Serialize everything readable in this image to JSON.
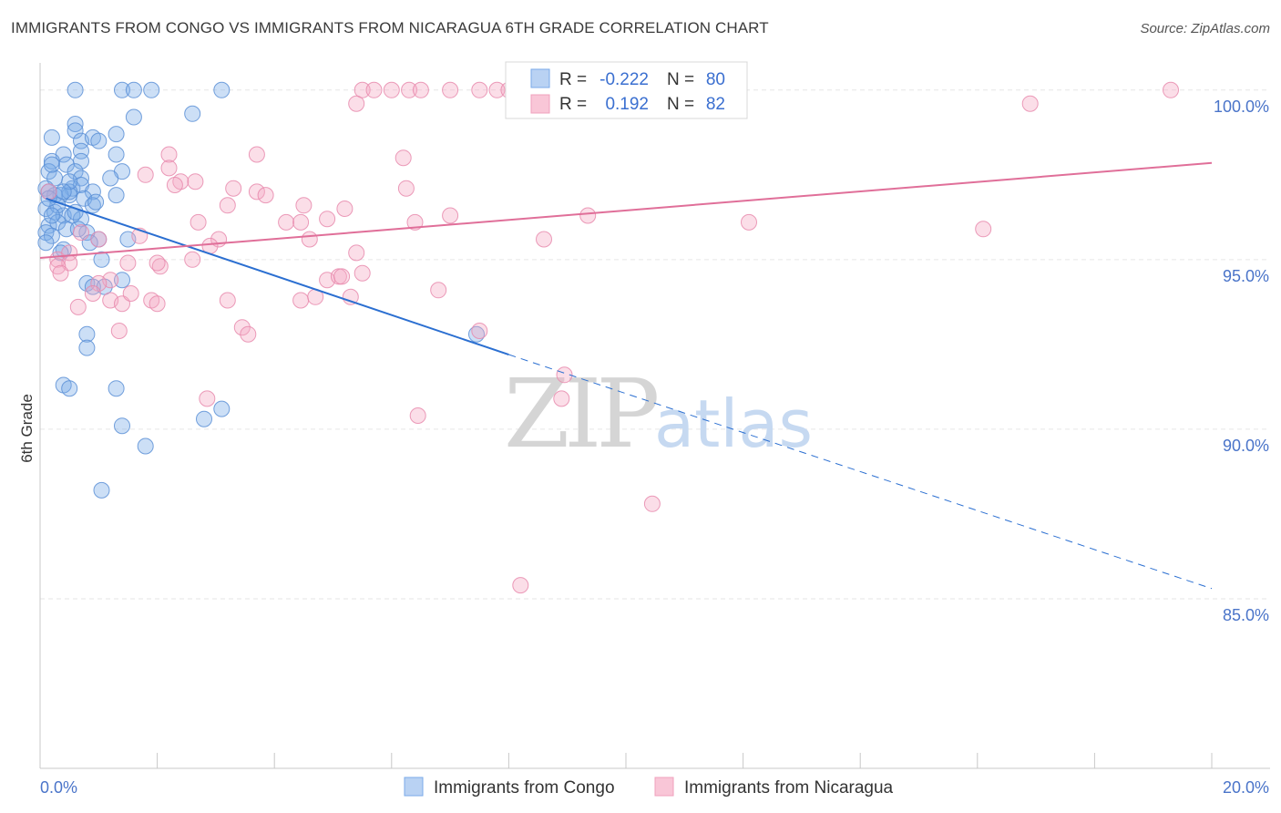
{
  "title": "IMMIGRANTS FROM CONGO VS IMMIGRANTS FROM NICARAGUA 6TH GRADE CORRELATION CHART",
  "source": "Source: ZipAtlas.com",
  "watermark": {
    "zip": "ZIP",
    "atlas": "atlas"
  },
  "chart_data": {
    "type": "scatter",
    "title": "IMMIGRANTS FROM CONGO VS IMMIGRANTS FROM NICARAGUA 6TH GRADE CORRELATION CHART",
    "xlabel": "",
    "ylabel": "6th Grade",
    "xlim": [
      0,
      20
    ],
    "ylim": [
      80,
      100.8
    ],
    "x_tick_labels": [
      {
        "value": 0,
        "label": "0.0%"
      },
      {
        "value": 20,
        "label": "20.0%"
      }
    ],
    "x_minor_ticks": [
      2,
      4,
      6,
      8,
      10,
      12,
      14,
      16,
      18,
      20
    ],
    "y_ticks": [
      {
        "value": 100,
        "label": "100.0%"
      },
      {
        "value": 95,
        "label": "95.0%"
      },
      {
        "value": 90,
        "label": "90.0%"
      },
      {
        "value": 85,
        "label": "85.0%"
      }
    ],
    "grid": true,
    "legend": {
      "position": "top-center",
      "entries": [
        {
          "r_label": "R =",
          "r_value": "-0.222",
          "n_label": "N =",
          "n_value": "80"
        },
        {
          "r_label": "R =",
          "r_value": "0.192",
          "n_label": "N =",
          "n_value": "82"
        }
      ]
    },
    "series": [
      {
        "name": "Immigrants from Congo",
        "color": "#7aaae8",
        "stroke": "#5b8fd6",
        "line_color": "#2b6fd1",
        "trend": {
          "x0": 0.1,
          "y0": 96.8,
          "x1": 8.0,
          "y1": 92.2,
          "dash_to_x": 20.0,
          "dash_to_y": 85.3
        },
        "points": [
          [
            0.6,
            100
          ],
          [
            1.4,
            100
          ],
          [
            1.6,
            100
          ],
          [
            1.9,
            100
          ],
          [
            3.1,
            100
          ],
          [
            2.6,
            99.3
          ],
          [
            1.6,
            99.2
          ],
          [
            0.6,
            99.0
          ],
          [
            0.6,
            98.8
          ],
          [
            0.2,
            98.6
          ],
          [
            1.3,
            98.7
          ],
          [
            0.7,
            98.5
          ],
          [
            0.9,
            98.6
          ],
          [
            1.0,
            98.5
          ],
          [
            0.4,
            98.1
          ],
          [
            0.7,
            98.2
          ],
          [
            1.3,
            98.1
          ],
          [
            0.2,
            97.9
          ],
          [
            0.7,
            97.9
          ],
          [
            0.45,
            97.8
          ],
          [
            0.15,
            97.6
          ],
          [
            0.6,
            97.6
          ],
          [
            1.4,
            97.6
          ],
          [
            0.25,
            97.4
          ],
          [
            0.7,
            97.4
          ],
          [
            1.2,
            97.4
          ],
          [
            0.1,
            97.1
          ],
          [
            0.55,
            97.1
          ],
          [
            0.7,
            97.2
          ],
          [
            0.9,
            97.0
          ],
          [
            0.25,
            96.9
          ],
          [
            0.5,
            96.9
          ],
          [
            0.35,
            96.9
          ],
          [
            0.15,
            97.0
          ],
          [
            0.5,
            97.0
          ],
          [
            0.75,
            96.8
          ],
          [
            0.1,
            96.5
          ],
          [
            0.25,
            96.4
          ],
          [
            0.4,
            96.3
          ],
          [
            0.55,
            96.3
          ],
          [
            0.9,
            96.6
          ],
          [
            0.95,
            96.7
          ],
          [
            1.3,
            96.9
          ],
          [
            0.7,
            96.2
          ],
          [
            0.15,
            96.0
          ],
          [
            0.3,
            96.1
          ],
          [
            0.45,
            95.9
          ],
          [
            0.1,
            95.8
          ],
          [
            0.2,
            95.7
          ],
          [
            0.8,
            95.8
          ],
          [
            1.0,
            95.6
          ],
          [
            1.5,
            95.6
          ],
          [
            0.1,
            95.5
          ],
          [
            0.4,
            95.3
          ],
          [
            1.05,
            95.0
          ],
          [
            0.8,
            94.3
          ],
          [
            0.9,
            94.2
          ],
          [
            1.4,
            94.4
          ],
          [
            0.8,
            92.8
          ],
          [
            0.8,
            92.4
          ],
          [
            7.45,
            92.8
          ],
          [
            0.4,
            91.3
          ],
          [
            0.5,
            91.2
          ],
          [
            1.3,
            91.2
          ],
          [
            3.1,
            90.6
          ],
          [
            2.8,
            90.3
          ],
          [
            1.4,
            90.1
          ],
          [
            1.8,
            89.5
          ],
          [
            1.05,
            88.2
          ],
          [
            0.2,
            97.8
          ],
          [
            0.3,
            96.6
          ],
          [
            0.6,
            96.4
          ],
          [
            0.85,
            95.5
          ],
          [
            0.35,
            95.2
          ],
          [
            1.1,
            94.2
          ],
          [
            0.5,
            97.3
          ],
          [
            0.2,
            96.3
          ],
          [
            0.65,
            95.9
          ],
          [
            0.4,
            97.0
          ],
          [
            0.15,
            96.8
          ]
        ]
      },
      {
        "name": "Immigrants from Nicaragua",
        "color": "#f4a8c3",
        "stroke": "#e88aad",
        "line_color": "#e06f99",
        "trend": {
          "x0": 0.0,
          "y0": 95.05,
          "x1": 20.0,
          "y1": 97.85
        },
        "points": [
          [
            5.5,
            100
          ],
          [
            5.7,
            100
          ],
          [
            6.0,
            100
          ],
          [
            6.3,
            100
          ],
          [
            6.5,
            100
          ],
          [
            7.0,
            100
          ],
          [
            7.5,
            100
          ],
          [
            7.8,
            100
          ],
          [
            8.0,
            100
          ],
          [
            19.3,
            100
          ],
          [
            5.4,
            99.6
          ],
          [
            16.9,
            99.6
          ],
          [
            2.2,
            98.1
          ],
          [
            3.7,
            98.1
          ],
          [
            6.2,
            98.0
          ],
          [
            2.2,
            97.7
          ],
          [
            1.8,
            97.5
          ],
          [
            2.4,
            97.3
          ],
          [
            2.65,
            97.3
          ],
          [
            2.3,
            97.2
          ],
          [
            3.3,
            97.1
          ],
          [
            3.7,
            97.0
          ],
          [
            3.85,
            96.9
          ],
          [
            6.25,
            97.1
          ],
          [
            4.5,
            96.6
          ],
          [
            3.2,
            96.6
          ],
          [
            5.2,
            96.5
          ],
          [
            4.2,
            96.1
          ],
          [
            4.45,
            96.1
          ],
          [
            4.9,
            96.2
          ],
          [
            2.7,
            96.1
          ],
          [
            6.4,
            96.1
          ],
          [
            7.0,
            96.3
          ],
          [
            9.35,
            96.3
          ],
          [
            12.1,
            96.1
          ],
          [
            16.1,
            95.9
          ],
          [
            3.05,
            95.6
          ],
          [
            2.9,
            95.4
          ],
          [
            1.7,
            95.7
          ],
          [
            4.6,
            95.6
          ],
          [
            8.6,
            95.6
          ],
          [
            0.3,
            95.0
          ],
          [
            0.5,
            95.2
          ],
          [
            0.7,
            95.8
          ],
          [
            0.5,
            94.9
          ],
          [
            0.3,
            94.8
          ],
          [
            1.5,
            94.9
          ],
          [
            2.05,
            94.8
          ],
          [
            2.6,
            95.0
          ],
          [
            5.4,
            95.2
          ],
          [
            5.5,
            94.6
          ],
          [
            4.9,
            94.4
          ],
          [
            5.1,
            94.5
          ],
          [
            5.15,
            94.5
          ],
          [
            6.8,
            94.1
          ],
          [
            1.2,
            94.4
          ],
          [
            1.0,
            94.3
          ],
          [
            0.9,
            94.0
          ],
          [
            1.2,
            93.8
          ],
          [
            1.4,
            93.7
          ],
          [
            1.55,
            94.0
          ],
          [
            1.9,
            93.8
          ],
          [
            2.0,
            93.7
          ],
          [
            0.65,
            93.6
          ],
          [
            3.2,
            93.8
          ],
          [
            4.45,
            93.8
          ],
          [
            4.7,
            93.9
          ],
          [
            5.3,
            93.9
          ],
          [
            3.45,
            93.0
          ],
          [
            3.55,
            92.8
          ],
          [
            1.35,
            92.9
          ],
          [
            7.5,
            92.9
          ],
          [
            8.95,
            91.6
          ],
          [
            2.85,
            90.9
          ],
          [
            8.9,
            90.9
          ],
          [
            6.45,
            90.4
          ],
          [
            10.45,
            87.8
          ],
          [
            8.2,
            85.4
          ],
          [
            0.15,
            97.0
          ],
          [
            1.0,
            95.6
          ],
          [
            0.35,
            94.6
          ],
          [
            2.0,
            94.9
          ]
        ]
      }
    ]
  }
}
